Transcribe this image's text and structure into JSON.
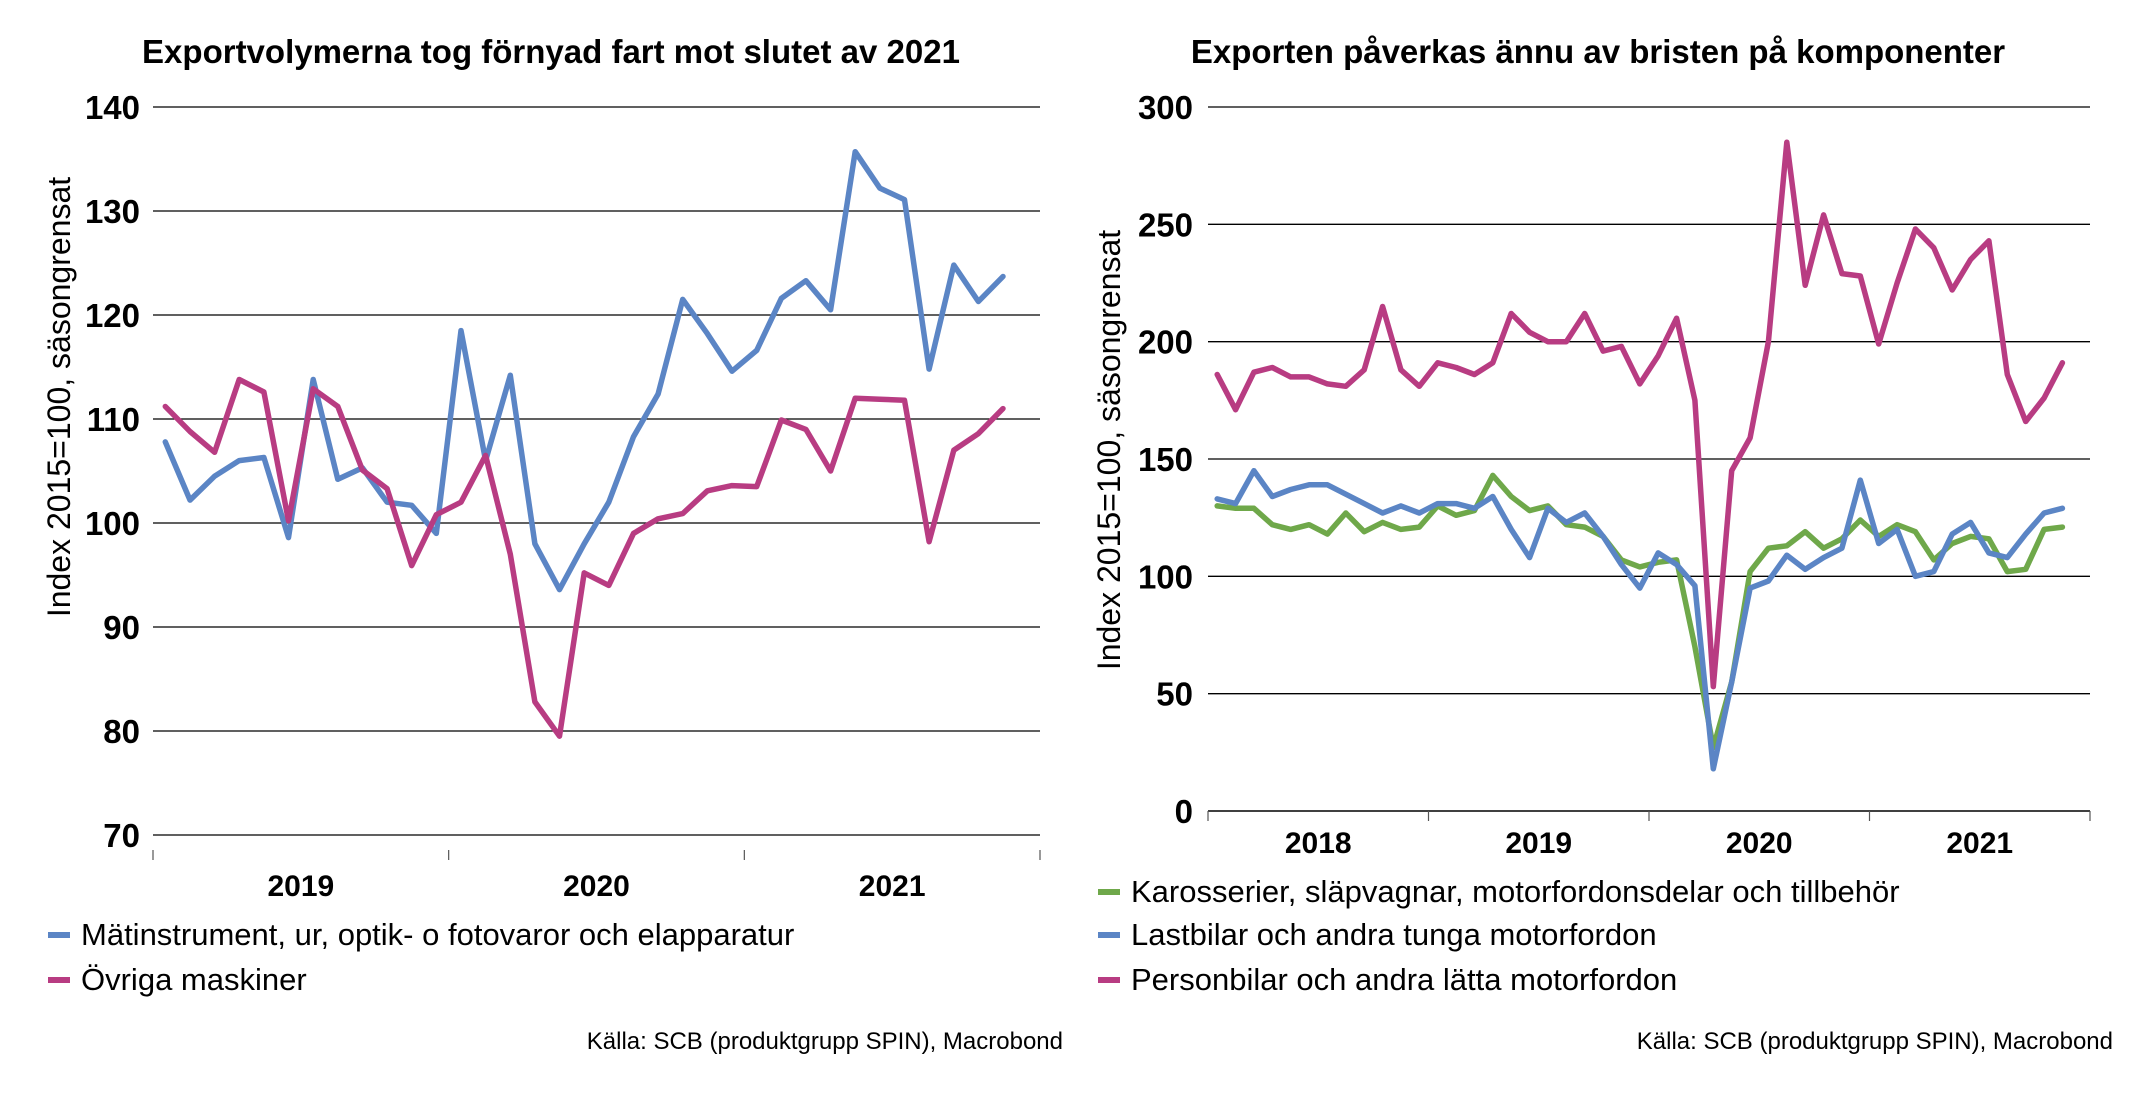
{
  "charts": [
    {
      "title": "Exportvolymerna tog förnyad fart mot slutet av 2021",
      "ylabel": "Index 2015=100, säsongrensat",
      "source": "Källa: SCB (produktgrupp SPIN), Macrobond"
    },
    {
      "title": "Exporten påverkas ännu av bristen på komponenter",
      "ylabel": "Index 2015=100, säsongrensat",
      "source": "Källa: SCB (produktgrupp SPIN), Macrobond"
    }
  ],
  "chart_data": [
    {
      "type": "line",
      "title": "Exportvolymerna tog förnyad fart mot slutet av 2021",
      "xlabel": "",
      "ylabel": "Index 2015=100, säsongrensat",
      "ylim": [
        70,
        140
      ],
      "yticks": [
        70,
        80,
        90,
        100,
        110,
        120,
        130,
        140
      ],
      "x_start": "2019-01",
      "x_end": "2021-12",
      "year_labels": [
        "2019",
        "2020",
        "2021"
      ],
      "grid": true,
      "legend": "bottom",
      "series": [
        {
          "name": "Mätinstrument, ur, optik- o fotovaror och elapparatur",
          "color": "#5b85c5",
          "values": [
            107.8,
            102.2,
            104.5,
            106.0,
            106.3,
            98.6,
            113.8,
            104.2,
            105.3,
            102.0,
            101.7,
            99.0,
            118.5,
            106.0,
            114.2,
            98.0,
            93.6,
            98.0,
            102.0,
            108.3,
            112.4,
            121.5,
            118.2,
            114.6,
            116.6,
            121.6,
            123.3,
            120.5,
            135.7,
            132.2,
            131.1,
            114.8,
            124.8,
            121.3,
            123.7
          ]
        },
        {
          "name": "Övriga maskiner",
          "color": "#b83c82",
          "values": [
            111.2,
            108.8,
            106.8,
            113.8,
            112.6,
            100.2,
            112.9,
            111.2,
            105.1,
            103.3,
            95.9,
            100.8,
            102.0,
            106.5,
            97.0,
            82.8,
            79.5,
            95.2,
            94.0,
            99.0,
            100.4,
            100.9,
            103.1,
            103.6,
            103.5,
            109.9,
            109.0,
            105.0,
            112.0,
            111.9,
            111.8,
            98.2,
            107.0,
            108.6,
            111.0
          ]
        }
      ]
    },
    {
      "type": "line",
      "title": "Exporten påverkas ännu av bristen på komponenter",
      "xlabel": "",
      "ylabel": "Index 2015=100, säsongrensat",
      "ylim": [
        0,
        300
      ],
      "yticks": [
        0,
        50,
        100,
        150,
        200,
        250,
        300
      ],
      "x_start": "2018-01",
      "x_end": "2021-12",
      "year_labels": [
        "2018",
        "2019",
        "2020",
        "2021"
      ],
      "grid": true,
      "legend": "bottom",
      "series": [
        {
          "name": "Karosserier, släpvagnar, motorfordonsdelar och tillbehör",
          "color": "#6fa84a",
          "values": [
            130,
            129,
            129,
            122,
            120,
            122,
            118,
            127,
            119,
            123,
            120,
            121,
            130,
            126,
            128,
            143,
            134,
            128,
            130,
            122,
            121,
            117,
            107,
            104,
            106,
            107,
            70,
            27,
            55,
            102,
            112,
            113,
            119,
            112,
            116,
            124,
            117,
            122,
            119,
            107,
            114,
            117,
            116,
            102,
            103,
            120,
            121
          ]
        },
        {
          "name": "Lastbilar och andra tunga motorfordon",
          "color": "#5b85c5",
          "values": [
            133,
            131,
            145,
            134,
            137,
            139,
            139,
            135,
            131,
            127,
            130,
            127,
            131,
            131,
            129,
            134,
            120,
            108,
            129,
            123,
            127,
            117,
            105,
            95,
            110,
            105,
            96,
            18,
            55,
            95,
            98,
            109,
            103,
            108,
            112,
            141,
            114,
            120,
            100,
            102,
            118,
            123,
            110,
            108,
            118,
            127,
            129
          ]
        },
        {
          "name": "Personbilar och andra lätta motorfordon",
          "color": "#b83c82",
          "values": [
            186,
            171,
            187,
            189,
            185,
            185,
            182,
            181,
            188,
            215,
            188,
            181,
            191,
            189,
            186,
            191,
            212,
            204,
            200,
            200,
            212,
            196,
            198,
            182,
            194,
            210,
            175,
            53,
            145,
            159,
            200,
            285,
            224,
            254,
            229,
            228,
            199,
            225,
            248,
            240,
            222,
            235,
            243,
            186,
            166,
            176,
            191
          ]
        }
      ]
    }
  ]
}
